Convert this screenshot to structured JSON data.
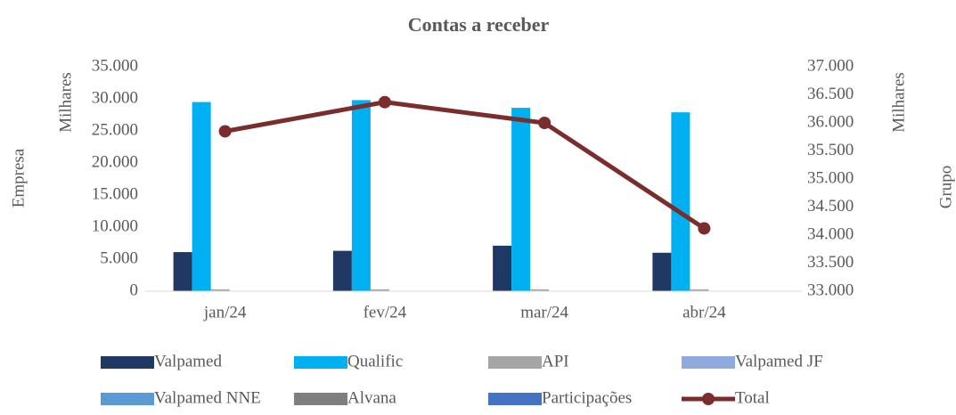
{
  "chart_data": {
    "type": "bar",
    "title": "Contas a receber",
    "y_label": "Empresa",
    "y_unit_label": "Milhares",
    "y2_label": "Grupo",
    "y2_unit_label": "Milhares",
    "categories": [
      "jan/24",
      "fev/24",
      "mar/24",
      "abr/24"
    ],
    "series": [
      {
        "name": "Valpamed",
        "color": "#203864",
        "values": [
          6100,
          6300,
          7100,
          6000
        ]
      },
      {
        "name": "Qualific",
        "color": "#00b0f0",
        "values": [
          29500,
          29800,
          28600,
          27900
        ]
      },
      {
        "name": "API",
        "color": "#a5a5a5",
        "values": [
          300,
          300,
          300,
          300
        ]
      },
      {
        "name": "Valpamed JF",
        "color": "#8faadc",
        "values": [
          0,
          0,
          0,
          0
        ]
      },
      {
        "name": "Valpamed NNE",
        "color": "#5b9bd5",
        "values": [
          0,
          0,
          0,
          0
        ]
      },
      {
        "name": "Alvana",
        "color": "#7f7f7f",
        "values": [
          0,
          0,
          0,
          0
        ]
      },
      {
        "name": "Participações",
        "color": "#4472c4",
        "values": [
          0,
          0,
          0,
          0
        ]
      },
      {
        "name": "Total",
        "color": "#7b2c2c",
        "type": "line",
        "axis": "y2",
        "values": [
          35850,
          36370,
          36000,
          34120
        ]
      }
    ],
    "ylim": [
      0,
      35000
    ],
    "yticks": [
      0,
      {
        "value": 5000,
        "label": "5.000"
      },
      {
        "value": 10000,
        "label": "10.000"
      },
      {
        "value": 15000,
        "label": "15.000"
      },
      {
        "value": 20000,
        "label": "20.000"
      },
      {
        "value": 25000,
        "label": "25.000"
      },
      {
        "value": 30000,
        "label": "30.000"
      },
      {
        "value": 35000,
        "label": "35.000"
      }
    ],
    "y2lim": [
      33000,
      37000
    ],
    "y2ticks": [
      {
        "value": 33000,
        "label": "33.000"
      },
      {
        "value": 33500,
        "label": "33.500"
      },
      {
        "value": 34000,
        "label": "34.000"
      },
      {
        "value": 34500,
        "label": "34.500"
      },
      {
        "value": 35000,
        "label": "35.000"
      },
      {
        "value": 35500,
        "label": "35.500"
      },
      {
        "value": 36000,
        "label": "36.000"
      },
      {
        "value": 36500,
        "label": "36.500"
      },
      {
        "value": 37000,
        "label": "37.000"
      }
    ],
    "legend": "bottom"
  }
}
